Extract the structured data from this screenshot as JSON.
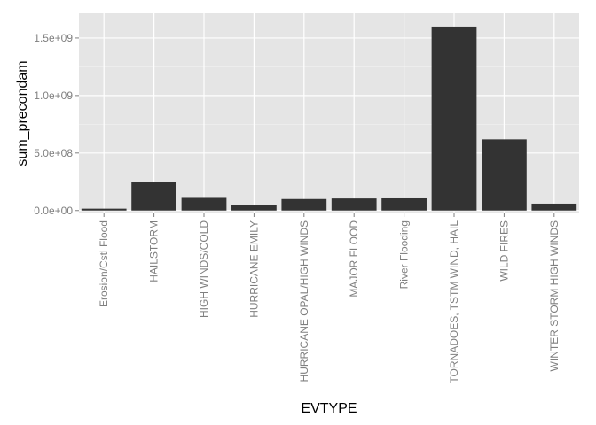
{
  "chart_data": {
    "type": "bar",
    "xlabel": "EVTYPE",
    "ylabel": "sum_precondam",
    "categories": [
      "Erosion/Cstl Flood",
      "HAILSTORM",
      "HIGH WINDS/COLD",
      "HURRICANE EMILY",
      "HURRICANE OPAL/HIGH WINDS",
      "MAJOR FLOOD",
      "River Flooding",
      "TORNADOES, TSTM WIND, HAIL",
      "WILD FIRES",
      "WINTER STORM HIGH WINDS"
    ],
    "values": [
      16200000,
      250000000,
      110000000,
      50000000,
      100000000,
      105000000,
      106000000,
      1600000000,
      619000000,
      60000000
    ],
    "ylim": [
      -25000000,
      1715000000
    ],
    "yticks": [
      0,
      500000000,
      1000000000,
      1500000000
    ],
    "ytick_labels": [
      "0.0e+00",
      "5.0e+08",
      "1.0e+09",
      "1.5e+09"
    ],
    "grid": true,
    "colors": {
      "panel_bg": "#e5e5e5",
      "grid_major": "#ffffff",
      "grid_minor": "#f2f2f2",
      "bar": "#333333",
      "tick_text": "#7f7f7f",
      "title_text": "#000000"
    }
  }
}
